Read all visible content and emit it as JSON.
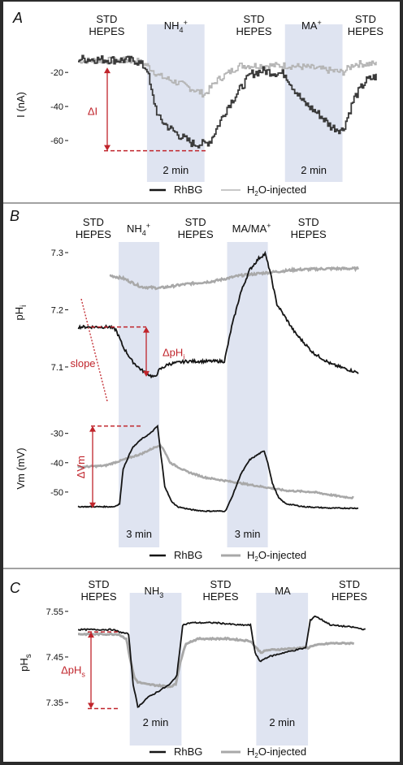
{
  "colors": {
    "rhbg": "#151515",
    "h2o": "#a8a8a8",
    "panelA_h2o": "#b4b4b4",
    "panelA_rhbg": "#3a3a3a",
    "panelA_rhbg_ma": "#555555",
    "shade": "#dfe4f1",
    "annotation": "#c0242b",
    "separator": "#444444"
  },
  "chart_data": [
    {
      "id": "A",
      "type": "line",
      "panel_label": "A",
      "ylabel": "I (nA)",
      "ylim": [
        -70,
        -8
      ],
      "xlim": [
        0,
        26
      ],
      "yticks": [
        -20,
        -40,
        -60
      ],
      "ytick_labels": [
        "-20",
        "-40",
        "-60"
      ],
      "conditions": [
        {
          "line1": "STD",
          "line2": "HEPES",
          "x": 2.5
        },
        {
          "line1": "NH4+",
          "line2": "",
          "x": 8.5
        },
        {
          "line1": "STD",
          "line2": "HEPES",
          "x": 15.3
        },
        {
          "line1": "MA+",
          "line2": "",
          "x": 20.3
        },
        {
          "line1": "STD",
          "line2": "HEPES",
          "x": 25.0
        }
      ],
      "shaded": [
        {
          "x0": 6,
          "x1": 11,
          "label": "2 min"
        },
        {
          "x0": 18,
          "x1": 23,
          "label": "2 min"
        }
      ],
      "delta_label": "ΔI",
      "legend": [
        "RhBG",
        "H2O-injected"
      ],
      "series": [
        {
          "name": "RhBG",
          "x": [
            0,
            5,
            6,
            6.3,
            7,
            8,
            9,
            10,
            11,
            11.5,
            13,
            15,
            16,
            18,
            18.5,
            19.5,
            21,
            22,
            23,
            24,
            25,
            26
          ],
          "y": [
            -12,
            -13,
            -18,
            -30,
            -47,
            -53,
            -58,
            -62,
            -62,
            -60,
            -40,
            -21,
            -19,
            -21,
            -27,
            -37,
            -45,
            -52,
            -54,
            -35,
            -25,
            -22
          ]
        },
        {
          "name": "H2O-injected",
          "x": [
            0,
            5,
            6,
            7,
            9,
            11,
            12,
            14,
            18,
            20,
            21,
            23,
            24,
            26
          ],
          "y": [
            -13,
            -13,
            -16,
            -22,
            -27,
            -33,
            -25,
            -16,
            -16,
            -17,
            -18,
            -20,
            -15,
            -15
          ]
        }
      ]
    },
    {
      "id": "B1",
      "type": "line",
      "panel_label": "B",
      "ylabel": "pHi",
      "ylim": [
        7.08,
        7.31
      ],
      "xlim": [
        0,
        32
      ],
      "yticks": [
        7.3,
        7.2,
        7.1
      ],
      "ytick_labels": [
        "7.3",
        "7.2",
        "7.1"
      ],
      "conditions": [
        {
          "line1": "STD",
          "line2": "HEPES",
          "x": 1.7
        },
        {
          "line1": "NH4+",
          "line2": "",
          "x": 6.7
        },
        {
          "line1": "STD",
          "line2": "HEPES",
          "x": 13.0
        },
        {
          "line1": "MA/MA+",
          "line2": "",
          "x": 19.2
        },
        {
          "line1": "STD",
          "line2": "HEPES",
          "x": 25.5
        }
      ],
      "shaded": [
        {
          "x0": 4.5,
          "x1": 9.0,
          "label": ""
        },
        {
          "x0": 16.5,
          "x1": 21.0,
          "label": ""
        }
      ],
      "delta_label": "ΔpHi",
      "slope_label": "slope",
      "series": [
        {
          "name": "RhBG",
          "x": [
            0,
            3.5,
            4.2,
            5,
            6,
            7,
            8,
            8.5,
            9,
            10,
            12,
            14,
            16.2,
            17,
            18,
            19,
            20,
            20.7,
            21.2,
            22,
            24,
            26,
            28,
            30,
            31
          ],
          "y": [
            7.17,
            7.17,
            7.165,
            7.135,
            7.11,
            7.095,
            7.085,
            7.082,
            7.095,
            7.105,
            7.11,
            7.11,
            7.11,
            7.17,
            7.23,
            7.27,
            7.29,
            7.298,
            7.27,
            7.21,
            7.16,
            7.125,
            7.105,
            7.095,
            7.09
          ]
        },
        {
          "name": "H2O-injected",
          "x": [
            3.5,
            5,
            7,
            9,
            12,
            15,
            18,
            21,
            24,
            28,
            31
          ],
          "y": [
            7.26,
            7.255,
            7.24,
            7.238,
            7.245,
            7.25,
            7.26,
            7.265,
            7.27,
            7.272,
            7.272
          ]
        }
      ]
    },
    {
      "id": "B2",
      "type": "line",
      "ylabel": "Vm (mV)",
      "ylim": [
        -60,
        -24
      ],
      "xlim": [
        0,
        32
      ],
      "yticks": [
        -30,
        -40,
        -50
      ],
      "ytick_labels": [
        "-30",
        "-40",
        "-50"
      ],
      "shaded": [
        {
          "x0": 4.5,
          "x1": 9.0,
          "label": "3 min"
        },
        {
          "x0": 16.5,
          "x1": 21.0,
          "label": "3 min"
        }
      ],
      "delta_label": "ΔVm",
      "legend": [
        "RhBG",
        "H2O-injected"
      ],
      "series": [
        {
          "name": "RhBG",
          "x": [
            0,
            4.0,
            4.6,
            5,
            6,
            7,
            8,
            8.8,
            9.2,
            9.6,
            10.3,
            11,
            12.5,
            14,
            16.3,
            17,
            18,
            19,
            20,
            20.6,
            21,
            21.5,
            22.2,
            23,
            25,
            28,
            31
          ],
          "y": [
            -55,
            -55,
            -54,
            -42,
            -35,
            -32,
            -30,
            -27.5,
            -38,
            -48,
            -53,
            -55,
            -56,
            -56.5,
            -56.5,
            -52,
            -44,
            -39,
            -37,
            -36,
            -40,
            -47,
            -52,
            -54,
            -55,
            -55.5,
            -55.5
          ]
        },
        {
          "name": "H2O-injected",
          "x": [
            0,
            3,
            5,
            7,
            9,
            9.4,
            10.2,
            12,
            14,
            17,
            20,
            23,
            26,
            29,
            30.5
          ],
          "y": [
            -41.5,
            -41,
            -39,
            -37,
            -34,
            -35,
            -40,
            -43,
            -45,
            -46.5,
            -48,
            -49.5,
            -50,
            -51.5,
            -52
          ]
        }
      ]
    },
    {
      "id": "C",
      "type": "line",
      "panel_label": "C",
      "ylabel": "pHs",
      "ylim": [
        7.32,
        7.555
      ],
      "xlim": [
        0,
        26
      ],
      "yticks": [
        7.55,
        7.45,
        7.35
      ],
      "ytick_labels": [
        "7.55",
        "7.45",
        "7.35"
      ],
      "conditions": [
        {
          "line1": "STD",
          "line2": "HEPES",
          "x": 1.8
        },
        {
          "line1": "NH3",
          "line2": "",
          "x": 6.6
        },
        {
          "line1": "STD",
          "line2": "HEPES",
          "x": 12.4
        },
        {
          "line1": "MA",
          "line2": "",
          "x": 17.8
        },
        {
          "line1": "STD",
          "line2": "HEPES",
          "x": 23.6
        }
      ],
      "shaded": [
        {
          "x0": 4.5,
          "x1": 9.0,
          "label": "2 min"
        },
        {
          "x0": 15.5,
          "x1": 20.0,
          "label": "2 min"
        }
      ],
      "delta_label": "ΔpHs",
      "legend": [
        "RhBG",
        "H2O-injected"
      ],
      "series": [
        {
          "name": "RhBG",
          "x": [
            0,
            3.0,
            3.6,
            4.4,
            4.8,
            5.2,
            6,
            7,
            8,
            8.6,
            9.1,
            9.8,
            12,
            14,
            15,
            15.4,
            15.8,
            16.5,
            18,
            19.8,
            20.2,
            20.6,
            22,
            24,
            25
          ],
          "y": [
            7.51,
            7.51,
            7.505,
            7.5,
            7.39,
            7.34,
            7.36,
            7.375,
            7.39,
            7.41,
            7.52,
            7.525,
            7.525,
            7.52,
            7.52,
            7.46,
            7.44,
            7.45,
            7.46,
            7.47,
            7.53,
            7.54,
            7.52,
            7.515,
            7.51
          ]
        },
        {
          "name": "H2O-injected",
          "x": [
            0,
            3.5,
            4.2,
            4.5,
            4.9,
            5.2,
            6,
            8,
            8.5,
            8.9,
            9.4,
            10.5,
            13,
            15,
            15.5,
            15.9,
            16.5,
            19.5,
            20,
            20.4,
            22,
            24
          ],
          "y": [
            7.5,
            7.5,
            7.49,
            7.45,
            7.405,
            7.395,
            7.39,
            7.385,
            7.39,
            7.44,
            7.48,
            7.49,
            7.49,
            7.485,
            7.47,
            7.46,
            7.465,
            7.47,
            7.47,
            7.475,
            7.48,
            7.48
          ]
        }
      ]
    }
  ]
}
